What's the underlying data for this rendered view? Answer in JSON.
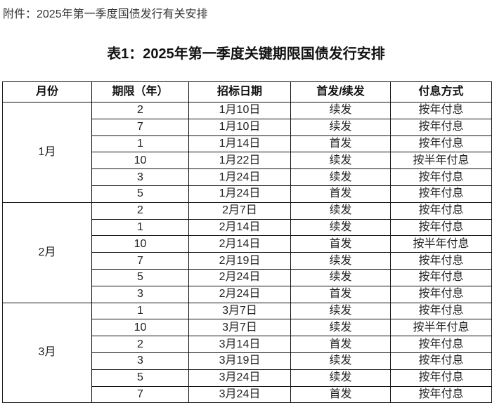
{
  "attachment_label": "附件：2025年第一季度国债发行有关安排",
  "title": "表1：2025年第一季度关键期限国债发行安排",
  "table": {
    "headers": [
      "月份",
      "期限（年）",
      "招标日期",
      "首发/续发",
      "付息方式"
    ],
    "groups": [
      {
        "month": "1月",
        "rows": [
          [
            "2",
            "1月10日",
            "续发",
            "按年付息"
          ],
          [
            "7",
            "1月10日",
            "续发",
            "按年付息"
          ],
          [
            "1",
            "1月14日",
            "首发",
            "按年付息"
          ],
          [
            "10",
            "1月22日",
            "续发",
            "按半年付息"
          ],
          [
            "3",
            "1月24日",
            "续发",
            "按年付息"
          ],
          [
            "5",
            "1月24日",
            "首发",
            "按年付息"
          ]
        ]
      },
      {
        "month": "2月",
        "rows": [
          [
            "2",
            "2月7日",
            "续发",
            "按年付息"
          ],
          [
            "1",
            "2月14日",
            "续发",
            "按年付息"
          ],
          [
            "10",
            "2月14日",
            "首发",
            "按半年付息"
          ],
          [
            "7",
            "2月19日",
            "续发",
            "按年付息"
          ],
          [
            "5",
            "2月24日",
            "续发",
            "按年付息"
          ],
          [
            "3",
            "2月24日",
            "首发",
            "按年付息"
          ]
        ]
      },
      {
        "month": "3月",
        "rows": [
          [
            "1",
            "3月7日",
            "续发",
            "按年付息"
          ],
          [
            "10",
            "3月7日",
            "续发",
            "按半年付息"
          ],
          [
            "2",
            "3月14日",
            "首发",
            "按年付息"
          ],
          [
            "3",
            "3月19日",
            "续发",
            "按年付息"
          ],
          [
            "5",
            "3月24日",
            "续发",
            "按年付息"
          ],
          [
            "7",
            "3月24日",
            "首发",
            "按年付息"
          ]
        ]
      }
    ]
  }
}
